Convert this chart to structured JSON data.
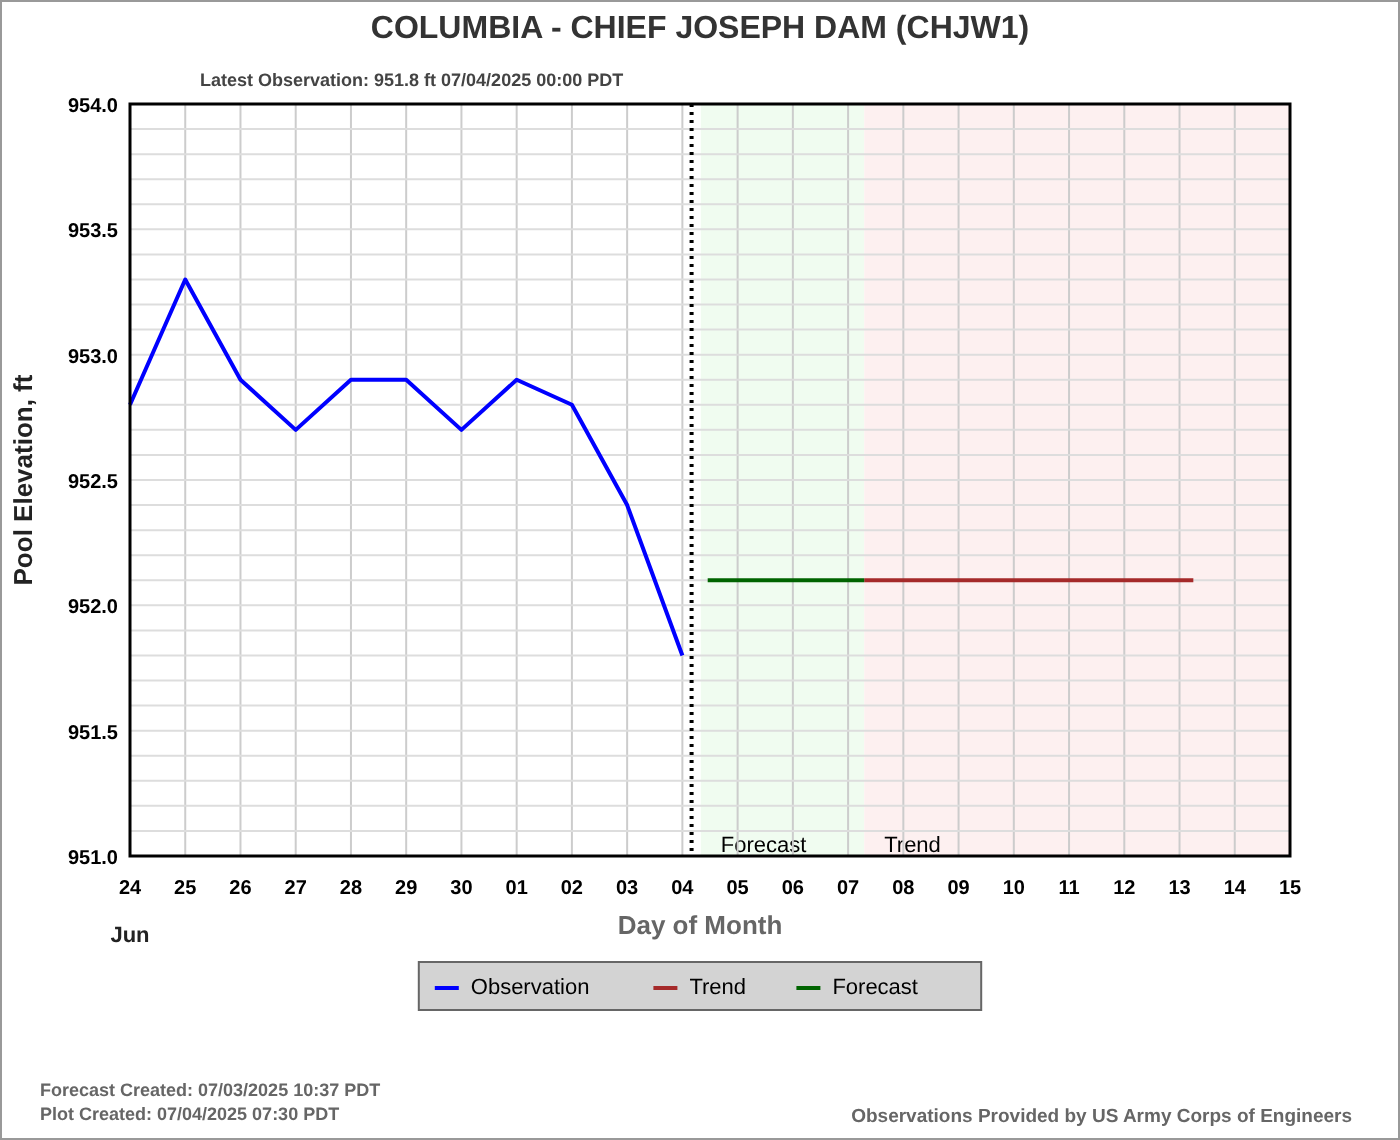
{
  "chart_data": {
    "type": "line",
    "title": "COLUMBIA - CHIEF JOSEPH DAM  (CHJW1)",
    "xlabel": "Day of Month",
    "ylabel": "Pool Elevation, ft",
    "annotations": [
      "Latest Observation: 951.8 ft 07/04/2025 00:00 PDT",
      "Jun",
      "Forecast Created: 07/03/2025 10:37 PDT",
      "Plot Created: 07/04/2025 07:30 PDT",
      "Observations Provided by US Army Corps of Engineers"
    ],
    "series": [
      {
        "name": "Observation",
        "color": "#0000ff",
        "x": [
          "2025-06-24",
          "2025-06-25",
          "2025-06-26",
          "2025-06-27",
          "2025-06-28",
          "2025-06-29",
          "2025-06-30",
          "2025-07-01",
          "2025-07-02",
          "2025-07-03",
          "2025-07-04"
        ],
        "values": [
          952.8,
          953.3,
          952.9,
          952.7,
          952.9,
          952.9,
          952.7,
          952.9,
          952.8,
          952.4,
          951.8
        ]
      },
      {
        "name": "Trend",
        "color": "#a52a2a",
        "x": [
          "2025-07-07T07:00",
          "2025-07-13T06:00"
        ],
        "values": [
          952.1,
          952.1
        ]
      },
      {
        "name": "Forecast",
        "color": "#006400",
        "x": [
          "2025-07-04T11:00",
          "2025-07-07T07:00"
        ],
        "values": [
          952.1,
          952.1
        ]
      }
    ],
    "xlim": [
      "2025-06-24",
      "2025-07-15"
    ],
    "xticks": [
      {
        "value": "2025-06-24",
        "label": "24"
      },
      {
        "value": "2025-06-25",
        "label": "25"
      },
      {
        "value": "2025-06-26",
        "label": "26"
      },
      {
        "value": "2025-06-27",
        "label": "27"
      },
      {
        "value": "2025-06-28",
        "label": "28"
      },
      {
        "value": "2025-06-29",
        "label": "29"
      },
      {
        "value": "2025-06-30",
        "label": "30"
      },
      {
        "value": "2025-07-01",
        "label": "01"
      },
      {
        "value": "2025-07-02",
        "label": "02"
      },
      {
        "value": "2025-07-03",
        "label": "03"
      },
      {
        "value": "2025-07-04",
        "label": "04"
      },
      {
        "value": "2025-07-05",
        "label": "05"
      },
      {
        "value": "2025-07-06",
        "label": "06"
      },
      {
        "value": "2025-07-07",
        "label": "07"
      },
      {
        "value": "2025-07-08",
        "label": "08"
      },
      {
        "value": "2025-07-09",
        "label": "09"
      },
      {
        "value": "2025-07-10",
        "label": "10"
      },
      {
        "value": "2025-07-11",
        "label": "11"
      },
      {
        "value": "2025-07-12",
        "label": "12"
      },
      {
        "value": "2025-07-13",
        "label": "13"
      },
      {
        "value": "2025-07-14",
        "label": "14"
      },
      {
        "value": "2025-07-15",
        "label": "15"
      }
    ],
    "ylim": [
      951,
      954
    ],
    "yticks": [
      {
        "value": 951,
        "label": "951.0"
      },
      {
        "value": 951.1,
        "label": null
      },
      {
        "value": 951.2,
        "label": null
      },
      {
        "value": 951.3,
        "label": null
      },
      {
        "value": 951.4,
        "label": null
      },
      {
        "value": 951.5,
        "label": "951.5"
      },
      {
        "value": 951.6,
        "label": null
      },
      {
        "value": 951.7,
        "label": null
      },
      {
        "value": 951.8,
        "label": null
      },
      {
        "value": 951.9,
        "label": null
      },
      {
        "value": 952,
        "label": "952.0"
      },
      {
        "value": 952.1,
        "label": null
      },
      {
        "value": 952.2,
        "label": null
      },
      {
        "value": 952.3,
        "label": null
      },
      {
        "value": 952.4,
        "label": null
      },
      {
        "value": 952.5,
        "label": "952.5"
      },
      {
        "value": 952.6,
        "label": null
      },
      {
        "value": 952.7,
        "label": null
      },
      {
        "value": 952.8,
        "label": null
      },
      {
        "value": 952.9,
        "label": null
      },
      {
        "value": 953,
        "label": "953.0"
      },
      {
        "value": 953.1,
        "label": null
      },
      {
        "value": 953.2,
        "label": null
      },
      {
        "value": 953.3,
        "label": null
      },
      {
        "value": 953.4,
        "label": null
      },
      {
        "value": 953.5,
        "label": "953.5"
      },
      {
        "value": 953.6,
        "label": null
      },
      {
        "value": 953.7,
        "label": null
      },
      {
        "value": 953.8,
        "label": null
      },
      {
        "value": 953.9,
        "label": null
      },
      {
        "value": 954,
        "label": "954.0"
      }
    ],
    "grid": true,
    "legend": "bottom",
    "bands": [
      {
        "axis": "x",
        "from": "2025-07-04T08:00",
        "to": "2025-07-07T07:00",
        "label": "Forecast",
        "color": "#f0fcf0"
      },
      {
        "axis": "x",
        "from": "2025-07-07T07:00",
        "to": "2025-07-15",
        "label": "Trend",
        "color": "#fdf0f0"
      }
    ],
    "ref_lines": [
      {
        "axis": "x",
        "value": "2025-07-04T04:00",
        "line_style": "dotted",
        "color": "#000000"
      }
    ]
  }
}
